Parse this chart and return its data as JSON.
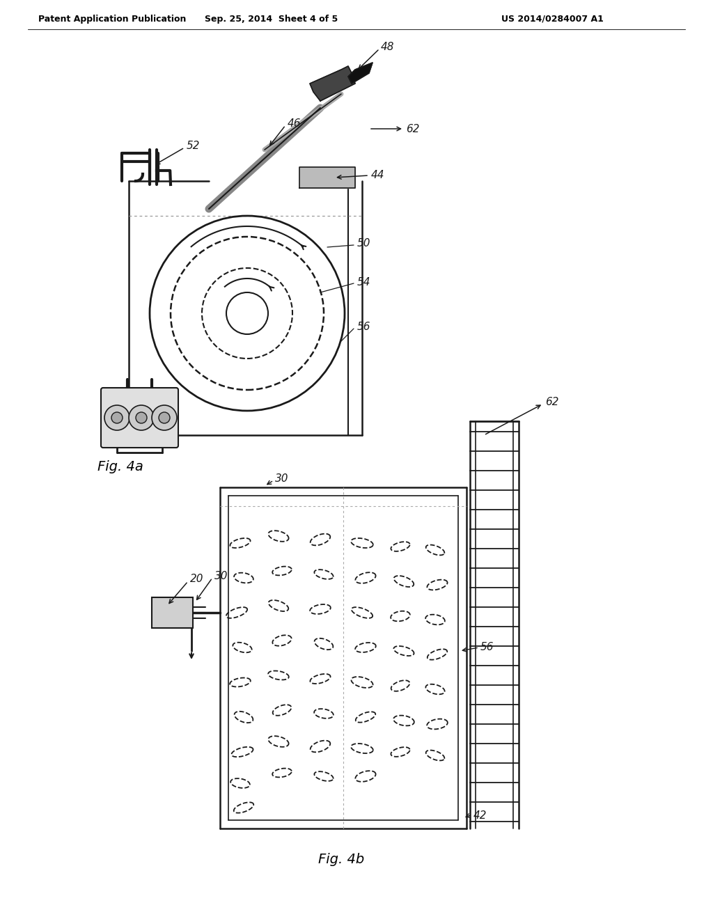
{
  "bg_color": "#ffffff",
  "header_left": "Patent Application Publication",
  "header_mid": "Sep. 25, 2014  Sheet 4 of 5",
  "header_right": "US 2014/0284007 A1",
  "fig4a_label": "Fig. 4a",
  "fig4b_label": "Fig. 4b",
  "lc": "#1a1a1a",
  "gray1": "#888888",
  "gray2": "#bbbbbb",
  "gray3": "#555555"
}
